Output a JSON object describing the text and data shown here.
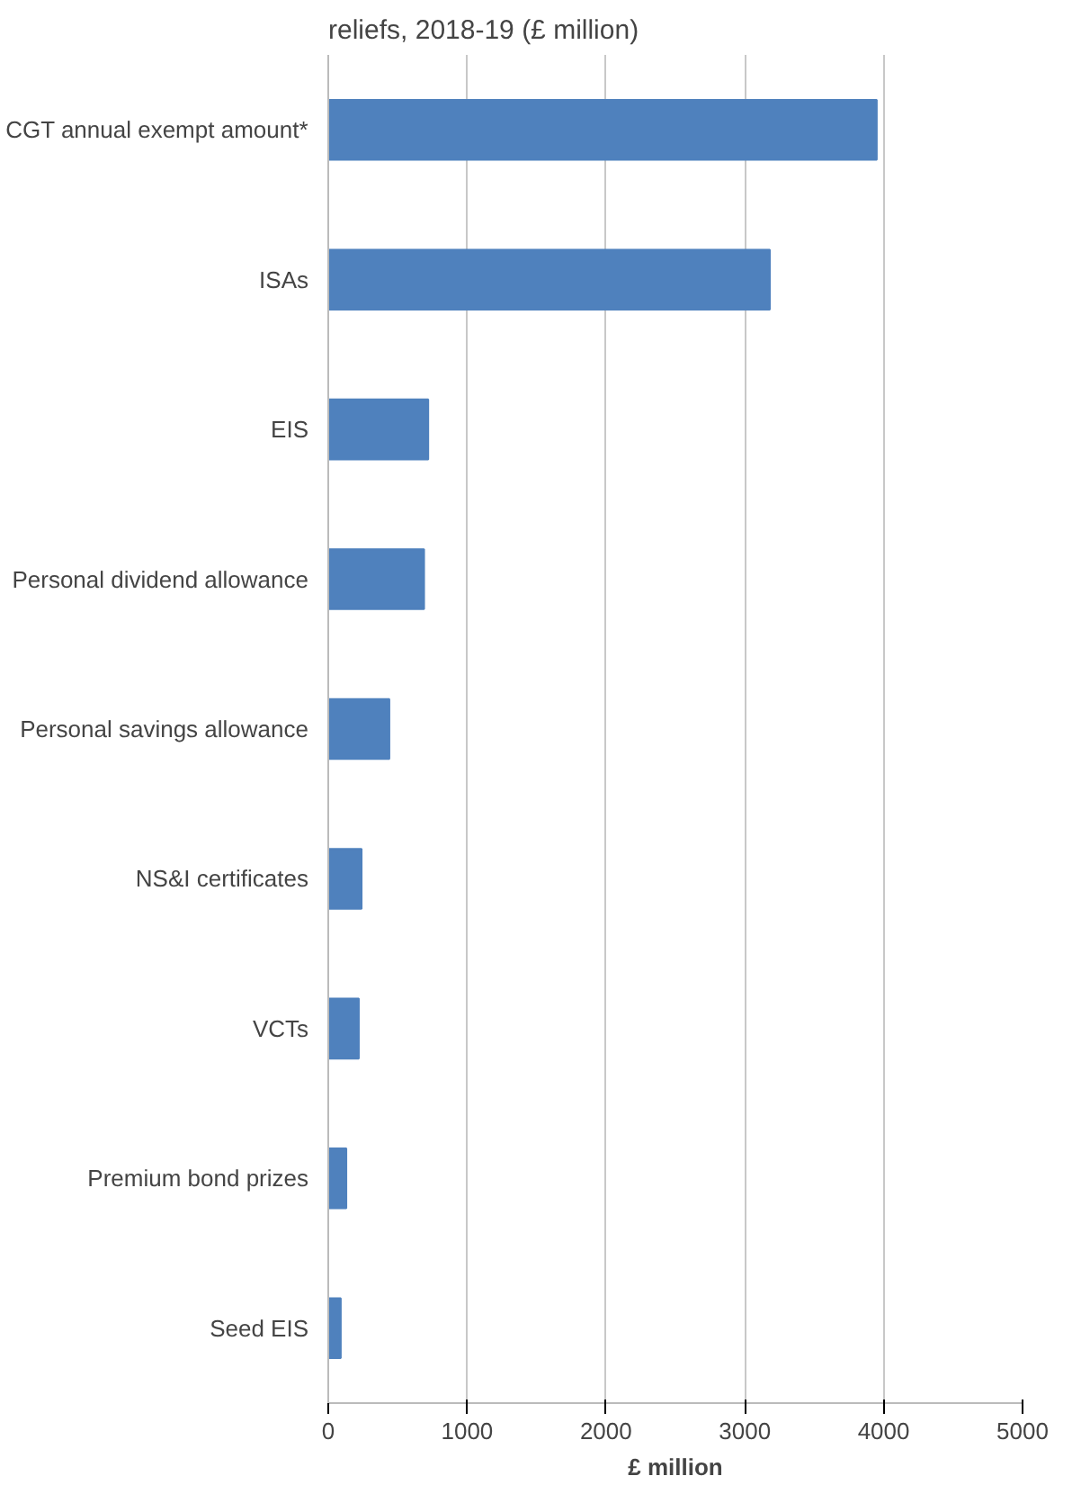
{
  "chart_data": {
    "type": "bar",
    "orientation": "horizontal",
    "title": "reliefs, 2018-19 (£ million)",
    "categories": [
      "CGT annual exempt amount*",
      "ISAs",
      "EIS",
      "Personal dividend allowance",
      "Personal savings allowance",
      "NS&I certificates",
      "VCTs",
      "Premium bond prizes",
      "Seed EIS"
    ],
    "values": [
      3950,
      3180,
      720,
      690,
      440,
      240,
      220,
      130,
      90
    ],
    "color": "#4f81bd",
    "xlim": [
      0,
      5000
    ],
    "xticks": [
      0,
      1000,
      2000,
      3000,
      4000,
      5000
    ],
    "xlabel": "£ million",
    "grid": "x"
  }
}
